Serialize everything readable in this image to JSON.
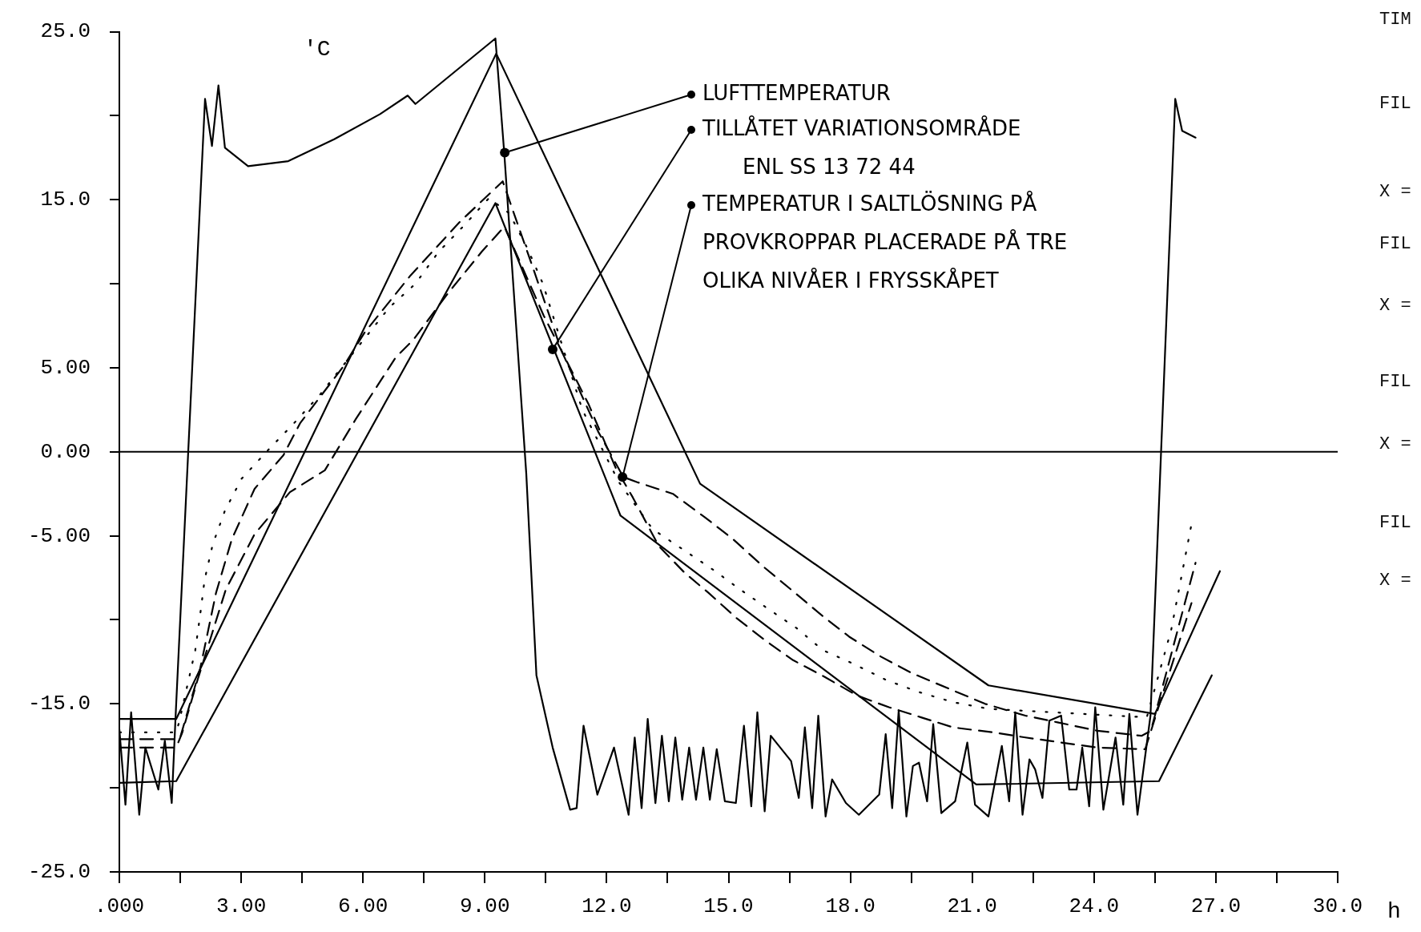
{
  "chart_data": {
    "type": "line",
    "ylabel": "'C",
    "xlabel": "h",
    "xlim": [
      0,
      30
    ],
    "ylim": [
      -25,
      25
    ],
    "xticks": [
      {
        "value": 0,
        "label": ".000"
      },
      {
        "value": 1.5,
        "label": null
      },
      {
        "value": 3,
        "label": "3.00"
      },
      {
        "value": 4.5,
        "label": null
      },
      {
        "value": 6,
        "label": "6.00"
      },
      {
        "value": 7.5,
        "label": null
      },
      {
        "value": 9,
        "label": "9.00"
      },
      {
        "value": 10.5,
        "label": null
      },
      {
        "value": 12,
        "label": "12.0"
      },
      {
        "value": 13.5,
        "label": null
      },
      {
        "value": 15,
        "label": "15.0"
      },
      {
        "value": 16.5,
        "label": null
      },
      {
        "value": 18,
        "label": "18.0"
      },
      {
        "value": 19.5,
        "label": null
      },
      {
        "value": 21,
        "label": "21.0"
      },
      {
        "value": 22.5,
        "label": null
      },
      {
        "value": 24,
        "label": "24.0"
      },
      {
        "value": 25.5,
        "label": null
      },
      {
        "value": 27,
        "label": "27.0"
      },
      {
        "value": 28.5,
        "label": null
      },
      {
        "value": 30,
        "label": "30.0"
      }
    ],
    "yticks": [
      {
        "value": -25,
        "label": "-25.0"
      },
      {
        "value": -20,
        "label": null
      },
      {
        "value": -15,
        "label": "-15.0"
      },
      {
        "value": -10,
        "label": null
      },
      {
        "value": -5,
        "label": "-5.00"
      },
      {
        "value": 0,
        "label": "0.00"
      },
      {
        "value": 5,
        "label": "5.00"
      },
      {
        "value": 10,
        "label": null
      },
      {
        "value": 15,
        "label": "15.0"
      },
      {
        "value": 20,
        "label": null
      },
      {
        "value": 25,
        "label": "25.0"
      }
    ],
    "grid": false,
    "legend": false,
    "marker": "none",
    "ref_lines": [
      {
        "axis": "y",
        "value": 0
      }
    ],
    "series": [
      {
        "color": "#000000",
        "line_style": "solid",
        "x": [
          0,
          0.15,
          0.29,
          0.49,
          0.64,
          0.96,
          1.12,
          1.29,
          1.38,
          2.11,
          2.28,
          2.44,
          2.6,
          3.17,
          4.16,
          5.29,
          6.42,
          7.1,
          7.29,
          9.26,
          9.48,
          10.02,
          10.27,
          10.67,
          11.1,
          11.26,
          11.43,
          11.77,
          12.18,
          12.54,
          12.69,
          12.86,
          13.01,
          13.2,
          13.36,
          13.53,
          13.69,
          13.86,
          14.03,
          14.2,
          14.38,
          14.54,
          14.71,
          14.91,
          15.18,
          15.38,
          15.56,
          15.71,
          15.89,
          16.04,
          16.54,
          16.73,
          16.88,
          17.06,
          17.21,
          17.39,
          17.55,
          17.89,
          18.21,
          18.71,
          18.87,
          19.03,
          19.19,
          19.38,
          19.54,
          19.69,
          19.89,
          20.04,
          20.24,
          20.58,
          20.88,
          21.07,
          21.4,
          21.73,
          21.91,
          22.06,
          22.24,
          22.41,
          22.55,
          22.73,
          22.9,
          23.19,
          23.39,
          23.57,
          23.71,
          23.88,
          24.03,
          24.23,
          24.53,
          24.72,
          24.87,
          25.07,
          25.39,
          26.0,
          26.17,
          26.5
        ],
        "values": [
          -16.5,
          -21.0,
          -15.5,
          -21.6,
          -17.6,
          -20.1,
          -17.2,
          -20.9,
          -16.0,
          21.0,
          18.2,
          21.8,
          18.1,
          17.0,
          17.3,
          18.6,
          20.1,
          21.2,
          20.7,
          24.6,
          17.7,
          -1.3,
          -13.3,
          -17.6,
          -21.3,
          -21.2,
          -16.3,
          -20.4,
          -17.6,
          -21.6,
          -17.0,
          -21.2,
          -15.9,
          -20.9,
          -16.9,
          -20.8,
          -17.0,
          -20.7,
          -17.6,
          -20.7,
          -17.6,
          -20.7,
          -17.7,
          -20.8,
          -20.9,
          -16.3,
          -21.1,
          -15.5,
          -21.4,
          -16.9,
          -18.4,
          -20.6,
          -16.4,
          -21.2,
          -15.7,
          -21.7,
          -19.5,
          -20.9,
          -21.6,
          -20.4,
          -16.8,
          -21.2,
          -15.4,
          -21.7,
          -18.7,
          -18.5,
          -20.8,
          -16.2,
          -21.5,
          -20.8,
          -17.3,
          -21.0,
          -21.7,
          -17.5,
          -20.8,
          -15.5,
          -21.6,
          -18.3,
          -18.9,
          -20.6,
          -16.0,
          -15.7,
          -20.1,
          -20.1,
          -17.6,
          -21.1,
          -15.2,
          -21.3,
          -17.0,
          -21.0,
          -15.6,
          -21.6,
          -15.7,
          21.0,
          19.1,
          18.7
        ]
      },
      {
        "color": "#000000",
        "line_style": "solid",
        "x": [
          0,
          1.4,
          9.28,
          14.3,
          21.4,
          25.5,
          27.1
        ],
        "values": [
          -15.9,
          -15.9,
          23.7,
          -1.9,
          -13.9,
          -15.6,
          -7.1
        ]
      },
      {
        "color": "#000000",
        "line_style": "solid",
        "x": [
          0,
          1.4,
          9.26,
          12.34,
          21.1,
          25.6,
          26.9
        ],
        "values": [
          -19.7,
          -19.6,
          14.8,
          -3.8,
          -19.8,
          -19.6,
          -13.3
        ]
      },
      {
        "color": "#000000",
        "line_style": "dashed",
        "x": [
          0,
          1.4,
          1.51,
          1.99,
          2.38,
          2.77,
          3.33,
          4.04,
          4.45,
          5.52,
          6.04,
          7.17,
          8.39,
          9.44,
          10.22,
          10.89,
          11.79,
          12.41,
          12.74,
          13.63,
          14.42,
          15.11,
          15.89,
          16.59,
          17.28,
          17.97,
          18.76,
          19.54,
          20.43,
          21.32,
          22.31,
          23.1,
          24.08,
          25.17,
          25.4,
          26.5
        ],
        "values": [
          -17.1,
          -17.1,
          -16.9,
          -12.9,
          -8.4,
          -5.2,
          -2.2,
          -0.2,
          1.7,
          5.1,
          7.1,
          10.5,
          13.7,
          16.1,
          10.7,
          6.0,
          1.2,
          -1.5,
          -1.8,
          -2.5,
          -3.9,
          -5.2,
          -6.9,
          -8.3,
          -9.7,
          -11.0,
          -12.2,
          -13.2,
          -14.1,
          -15.0,
          -15.7,
          -16.1,
          -16.6,
          -16.9,
          -16.6,
          -6.6
        ]
      },
      {
        "color": "#000000",
        "line_style": "dotted",
        "x": [
          0,
          1.4,
          1.47,
          1.87,
          1.99,
          2.1,
          2.3,
          2.6,
          3.01,
          3.66,
          4.3,
          4.94,
          6.65,
          7.29,
          7.86,
          8.5,
          9.1,
          9.6,
          10.05,
          10.43,
          11.4,
          12.3,
          13.13,
          13.87,
          14.61,
          15.35,
          16.07,
          16.68,
          17.32,
          18.06,
          18.9,
          19.69,
          20.53,
          21.42,
          25.3,
          25.9,
          26.4
        ],
        "values": [
          -16.7,
          -16.7,
          -16.1,
          -11.8,
          -9.7,
          -7.6,
          -5.5,
          -3.5,
          -1.6,
          0.1,
          1.7,
          3.4,
          8.6,
          10.0,
          11.9,
          13.5,
          15.1,
          14.2,
          12.1,
          10.0,
          2.5,
          -1.8,
          -4.6,
          -5.8,
          -7.0,
          -8.3,
          -9.5,
          -10.5,
          -11.8,
          -12.6,
          -13.6,
          -14.3,
          -14.9,
          -15.3,
          -15.8,
          -10.6,
          -4.3
        ]
      },
      {
        "color": "#000000",
        "line_style": "dashed",
        "x": [
          0,
          1.4,
          1.55,
          1.91,
          2.62,
          3.33,
          4.2,
          5.06,
          5.81,
          6.8,
          7.25,
          8.08,
          8.92,
          9.48,
          10.45,
          11.56,
          12.23,
          12.64,
          13.28,
          13.92,
          14.51,
          15.2,
          15.89,
          16.59,
          17.37,
          18.16,
          18.95,
          19.74,
          20.53,
          21.52,
          22.31,
          23.19,
          24.08,
          25.26,
          26.4
        ],
        "values": [
          -17.6,
          -17.6,
          -16.7,
          -13.7,
          -8.2,
          -4.9,
          -2.4,
          -1.1,
          1.9,
          5.6,
          6.7,
          9.4,
          11.9,
          13.4,
          8.1,
          2.8,
          -1.0,
          -2.7,
          -5.6,
          -7.2,
          -8.4,
          -9.9,
          -11.2,
          -12.4,
          -13.4,
          -14.5,
          -15.2,
          -15.8,
          -16.4,
          -16.7,
          -17.0,
          -17.3,
          -17.6,
          -17.7,
          -9.0
        ]
      }
    ],
    "annotations": [
      {
        "text": "LUFTTEMPERATUR",
        "x": 9.49,
        "y": 17.8
      },
      {
        "text": "TILLÅTET VARIATIONSOMRÅDE\nENL SS 13 72 44",
        "x": 10.67,
        "y": 6.1
      },
      {
        "text": "TEMPERATUR I SALTLÖSNING PÅ\nPROVKROPPAR PLACERADE PÅ TRE\nOLIKA NIVÅER I FRYSSKÅPET",
        "x": 12.39,
        "y": -1.5
      },
      "TIM",
      "FIL",
      "X =",
      "FIL",
      "X =",
      "FIL",
      "X =",
      "FIL",
      "X ="
    ]
  }
}
